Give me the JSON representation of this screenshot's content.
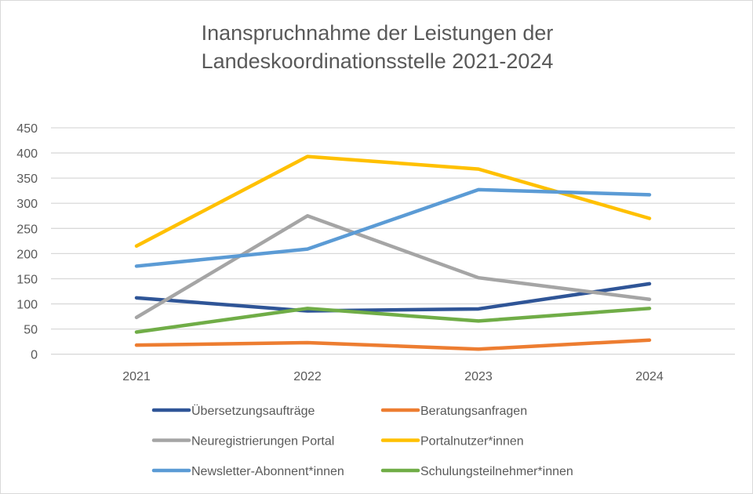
{
  "chart_data": {
    "type": "line",
    "title": [
      "Inanspruchnahme der Leistungen der",
      "Landeskoordinationsstelle 2021-2024"
    ],
    "xlabel": "",
    "ylabel": "",
    "categories": [
      "2021",
      "2022",
      "2023",
      "2024"
    ],
    "ylim": [
      0,
      450
    ],
    "yticks": [
      "0",
      "50",
      "100",
      "150",
      "200",
      "250",
      "300",
      "350",
      "400",
      "450"
    ],
    "grid": true,
    "legend_position": "bottom",
    "series": [
      {
        "name": "Übersetzungsaufträge",
        "color": "#2F5597",
        "values": [
          112,
          86,
          90,
          140
        ]
      },
      {
        "name": "Beratungsanfragen",
        "color": "#ED7D31",
        "values": [
          18,
          23,
          10,
          28
        ]
      },
      {
        "name": "Neuregistrierungen Portal",
        "color": "#A5A5A5",
        "values": [
          73,
          275,
          152,
          109
        ]
      },
      {
        "name": "Portalnutzer*innen",
        "color": "#FFC000",
        "values": [
          215,
          393,
          368,
          270
        ]
      },
      {
        "name": "Newsletter-Abonnent*innen",
        "color": "#5B9BD5",
        "values": [
          175,
          209,
          327,
          317
        ]
      },
      {
        "name": "Schulungsteilnehmer*innen",
        "color": "#70AD47",
        "values": [
          44,
          91,
          66,
          91
        ]
      }
    ]
  }
}
